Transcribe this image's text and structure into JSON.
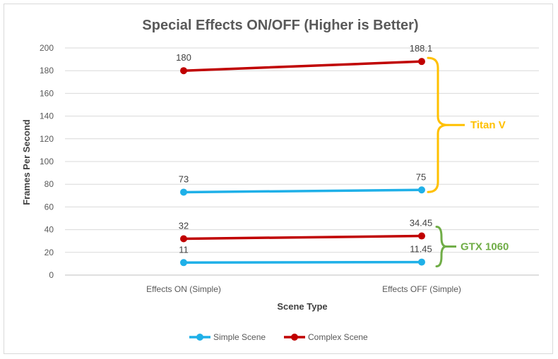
{
  "chart_data": {
    "type": "line",
    "title": "Special Effects ON/OFF (Higher is Better)",
    "xlabel": "Scene Type",
    "ylabel": "Frames Per Second",
    "ylim": [
      0,
      200
    ],
    "yticks": [
      0,
      20,
      40,
      60,
      80,
      100,
      120,
      140,
      160,
      180,
      200
    ],
    "ytick_labels": [
      "0",
      "20",
      "40",
      "60",
      "80",
      "100",
      "120",
      "140",
      "160",
      "180",
      "200"
    ],
    "categories": [
      "Effects ON (Simple)",
      "Effects OFF (Simple)"
    ],
    "grid": true,
    "legend_position": "bottom",
    "legend": [
      {
        "name": "Simple Scene",
        "color": "#1fb0e8"
      },
      {
        "name": "Complex Scene",
        "color": "#c00000"
      }
    ],
    "series": [
      {
        "group": "Titan V",
        "color": "#c00000",
        "values": [
          180,
          188.1
        ],
        "labels": [
          "180",
          "188.1"
        ]
      },
      {
        "group": "Titan V",
        "color": "#1fb0e8",
        "values": [
          73,
          75
        ],
        "labels": [
          "73",
          "75"
        ]
      },
      {
        "group": "GTX 1060",
        "color": "#c00000",
        "values": [
          32,
          34.45
        ],
        "labels": [
          "32",
          "34.45"
        ]
      },
      {
        "group": "GTX 1060",
        "color": "#1fb0e8",
        "values": [
          11,
          11.45
        ],
        "labels": [
          "11",
          "11.45"
        ]
      }
    ],
    "annotations": [
      {
        "text": "Titan V",
        "color": "#ffc000",
        "range": [
          75,
          188.1
        ]
      },
      {
        "text": "GTX 1060",
        "color": "#70ad47",
        "range": [
          11.45,
          34.45
        ]
      }
    ]
  }
}
